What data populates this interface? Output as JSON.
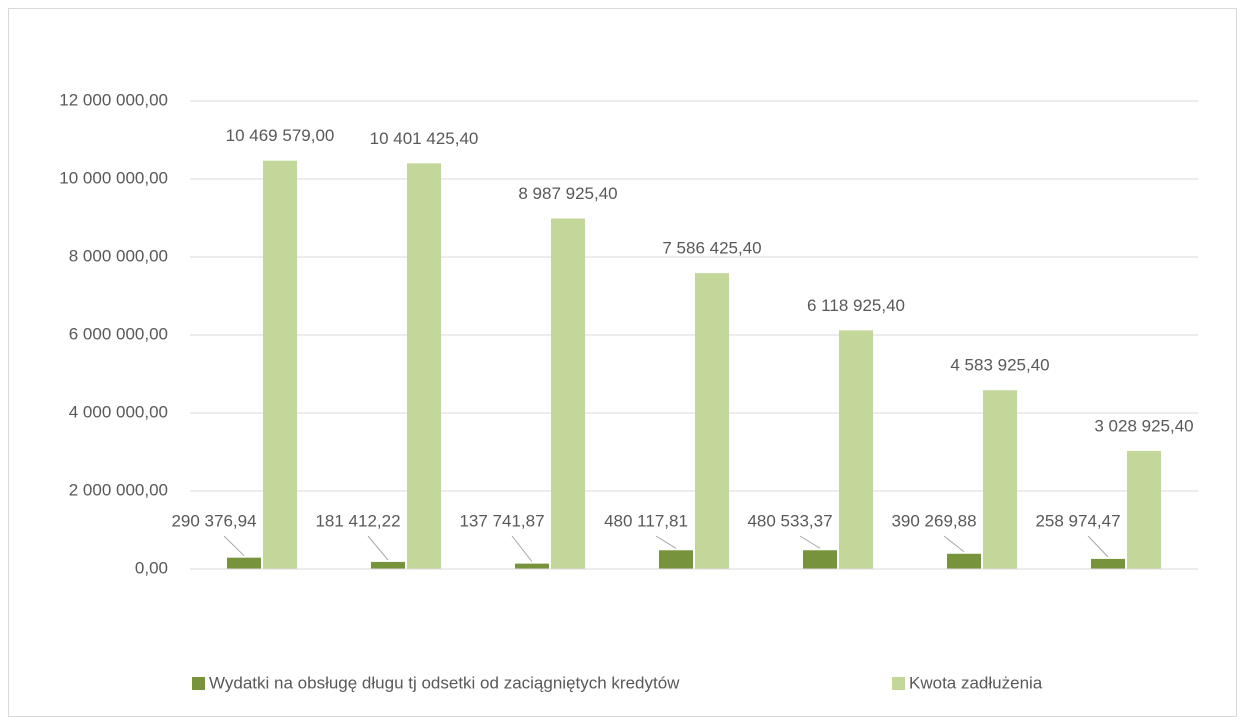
{
  "chart_data": {
    "type": "bar",
    "categories": [
      null,
      null,
      null,
      null,
      null,
      null,
      null
    ],
    "series": [
      {
        "name": "Wydatki na obsługę długu tj odsetki od zaciągniętych kredytów",
        "color": "#77933c",
        "values": [
          290376.94,
          181412.22,
          137741.87,
          480117.81,
          480533.37,
          390269.88,
          258974.47
        ],
        "value_labels": [
          "290 376,94",
          "181 412,22",
          "137 741,87",
          "480 117,81",
          "480 533,37",
          "390 269,88",
          "258 974,47"
        ]
      },
      {
        "name": "Kwota zadłużenia",
        "color": "#c4d79b",
        "values": [
          10469579.0,
          10401425.4,
          8987925.4,
          7586425.4,
          6118925.4,
          4583925.4,
          3028925.4
        ],
        "value_labels": [
          "10 469 579,00",
          "10 401 425,40",
          "8 987 925,40",
          "7 586 425,40",
          "6 118 925,40",
          "4 583 925,40",
          "3 028 925,40"
        ]
      }
    ],
    "ylim": [
      0,
      12000000
    ],
    "yticks": [
      {
        "value": 0,
        "label": "0,00"
      },
      {
        "value": 2000000,
        "label": "2 000 000,00"
      },
      {
        "value": 4000000,
        "label": "4 000 000,00"
      },
      {
        "value": 6000000,
        "label": "6 000 000,00"
      },
      {
        "value": 8000000,
        "label": "8 000 000,00"
      },
      {
        "value": 10000000,
        "label": "10 000 000,00"
      },
      {
        "value": 12000000,
        "label": "12 000 000,00"
      }
    ],
    "grid": true,
    "legend": "bottom"
  }
}
